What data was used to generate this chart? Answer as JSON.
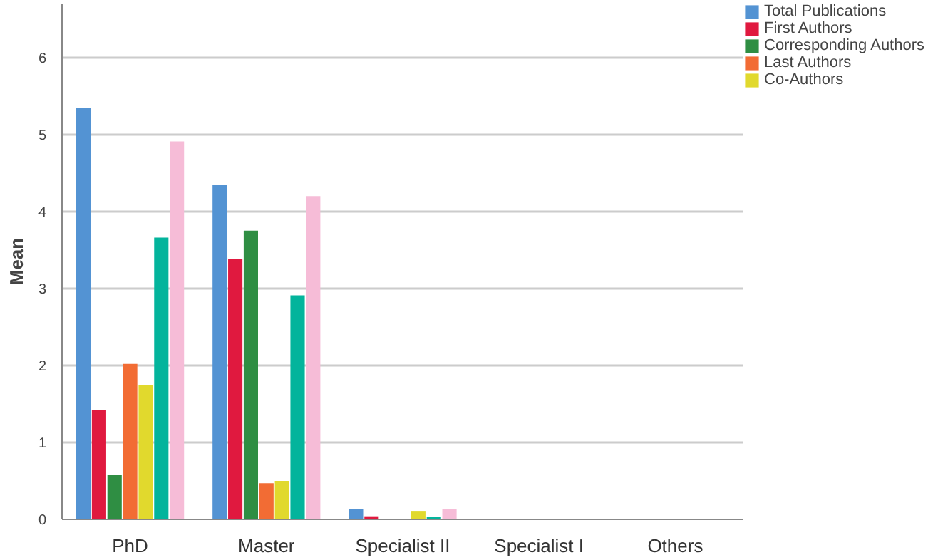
{
  "chart_data": {
    "type": "bar",
    "ylabel": "Mean",
    "categories": [
      "PhD",
      "Master",
      "Specialist II",
      "Specialist I",
      "Others"
    ],
    "series": [
      {
        "name": "Total Publications",
        "color": "#5393d3",
        "values": [
          5.35,
          4.35,
          0.13,
          0,
          0
        ]
      },
      {
        "name": "First Authors",
        "color": "#e0193f",
        "values": [
          1.42,
          3.38,
          0.04,
          0,
          0
        ]
      },
      {
        "name": "Corresponding Authors",
        "color": "#2f8e43",
        "values": [
          0.58,
          3.75,
          0,
          0,
          0
        ]
      },
      {
        "name": "Last Authors",
        "color": "#f26c34",
        "values": [
          2.02,
          0.47,
          0,
          0,
          0
        ]
      },
      {
        "name": "Co-Authors",
        "color": "#e1d92d",
        "values": [
          1.74,
          0.5,
          0.11,
          0,
          0
        ]
      },
      {
        "color": "#03b49c",
        "values": [
          3.66,
          2.91,
          0.03,
          0,
          0
        ]
      },
      {
        "color": "#f6bcd7",
        "values": [
          4.91,
          4.2,
          0.13,
          0,
          0
        ]
      }
    ],
    "ylim": [
      0,
      6.7
    ],
    "yticks": [
      0,
      1,
      2,
      3,
      4,
      5,
      6
    ],
    "grid": "y",
    "legend": "top right"
  }
}
